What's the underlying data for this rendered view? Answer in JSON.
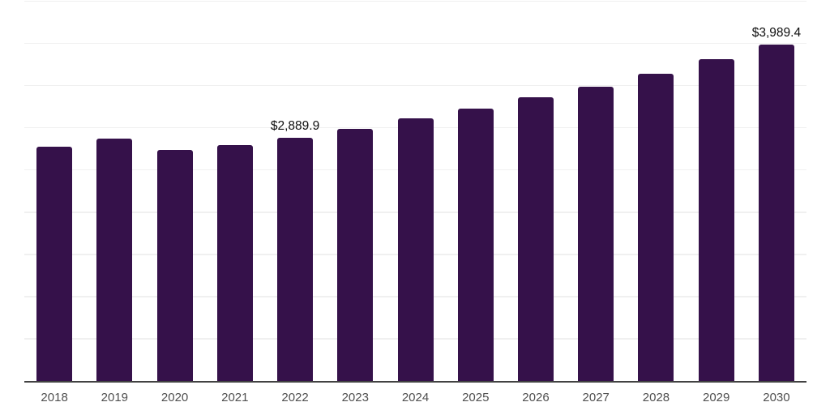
{
  "chart": {
    "background_color": "#ffffff",
    "bar_color": "#35114a",
    "gridline_color": "#f0f0f0",
    "axis_line_color": "#424242",
    "tick_label_color": "#4f4f4f",
    "data_label_color": "#0f0f0f"
  },
  "chart_data": {
    "type": "bar",
    "title": "",
    "xlabel": "",
    "ylabel": "",
    "categories": [
      "2018",
      "2019",
      "2020",
      "2021",
      "2022",
      "2023",
      "2024",
      "2025",
      "2026",
      "2027",
      "2028",
      "2029",
      "2030"
    ],
    "values": [
      2785,
      2880,
      2745,
      2800,
      2889.9,
      2995,
      3120,
      3235,
      3370,
      3495,
      3650,
      3820,
      3989.4
    ],
    "data_labels": [
      {
        "category": "2022",
        "text": "$2,889.9",
        "value": 2889.9
      },
      {
        "category": "2030",
        "text": "$3,989.4",
        "value": 3989.4
      }
    ],
    "ylim": [
      0,
      4500
    ],
    "gridline_interval": 500,
    "grid": "horizontal",
    "legend_position": "none",
    "y_axis_tick_labels_visible": false
  }
}
